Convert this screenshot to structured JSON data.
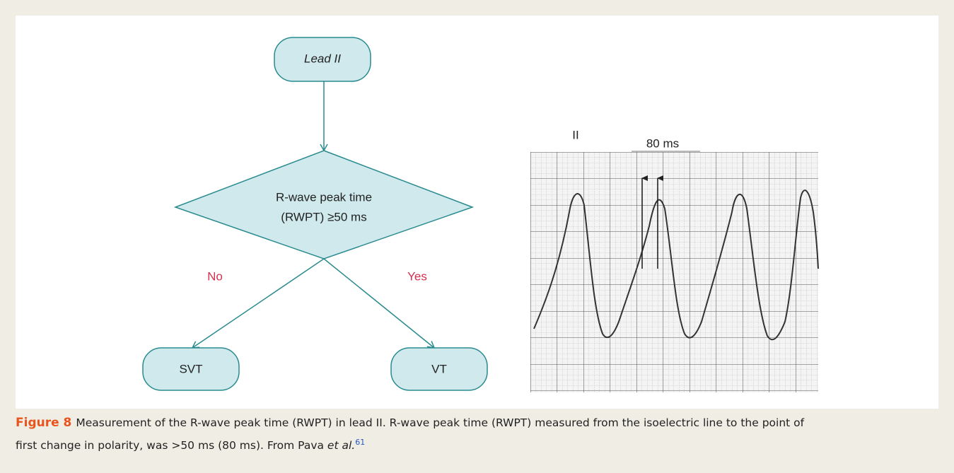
{
  "flowchart": {
    "start": "Lead II",
    "decision": [
      "R-wave peak time",
      "(RWPT) ≥50 ms"
    ],
    "no": "No",
    "yes": "Yes",
    "no_outcome": "SVT",
    "yes_outcome": "VT"
  },
  "ecg": {
    "lead": "II",
    "measure": "80 ms"
  },
  "caption": {
    "label": "Figure 8",
    "line_1": "Measurement of the R-wave peak time (RWPT) in lead II. R-wave peak time (RWPT) measured from the isoelectric line to the point of",
    "line_2": "first change in polarity, was >50 ms (80 ms). From Pava ",
    "et_al": "et al.",
    "reference": "61"
  }
}
